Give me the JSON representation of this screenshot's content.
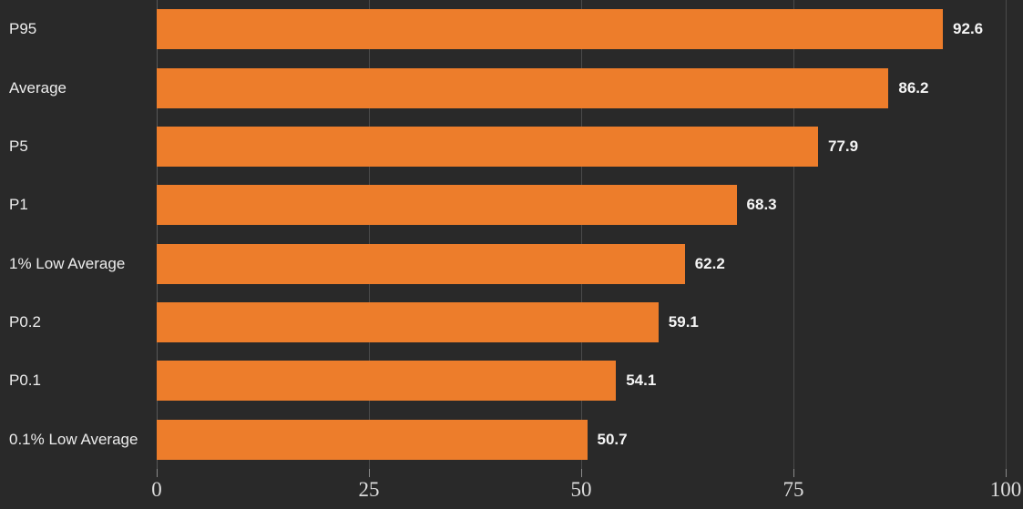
{
  "colors": {
    "background": "#292929",
    "bar": "#ED7D2B",
    "gridline": "#4A4A4A",
    "axis_line": "#585858",
    "tick_mark": "#8A8A8A",
    "category_text": "#EDEDED",
    "value_text": "#F5F5F5",
    "tick_text": "#DCDCDC"
  },
  "chart_data": {
    "type": "bar",
    "orientation": "horizontal",
    "title": "",
    "xlabel": "",
    "ylabel": "",
    "categories": [
      "P95",
      "Average",
      "P5",
      "P1",
      "1% Low Average",
      "P0.2",
      "P0.1",
      "0.1% Low Average"
    ],
    "values": [
      92.6,
      86.2,
      77.9,
      68.3,
      62.2,
      59.1,
      54.1,
      50.7
    ],
    "value_labels": [
      "92.6",
      "86.2",
      "77.9",
      "68.3",
      "62.2",
      "59.1",
      "54.1",
      "50.7"
    ],
    "xlim": [
      0,
      100
    ],
    "x_ticks": [
      0,
      25,
      50,
      75,
      100
    ],
    "x_tick_labels": [
      "0",
      "25",
      "50",
      "75",
      "100"
    ],
    "grid": "vertical-gridlines-at-ticks",
    "legend": "none",
    "bar_color": "#ED7D2B",
    "background_color": "#292929"
  }
}
